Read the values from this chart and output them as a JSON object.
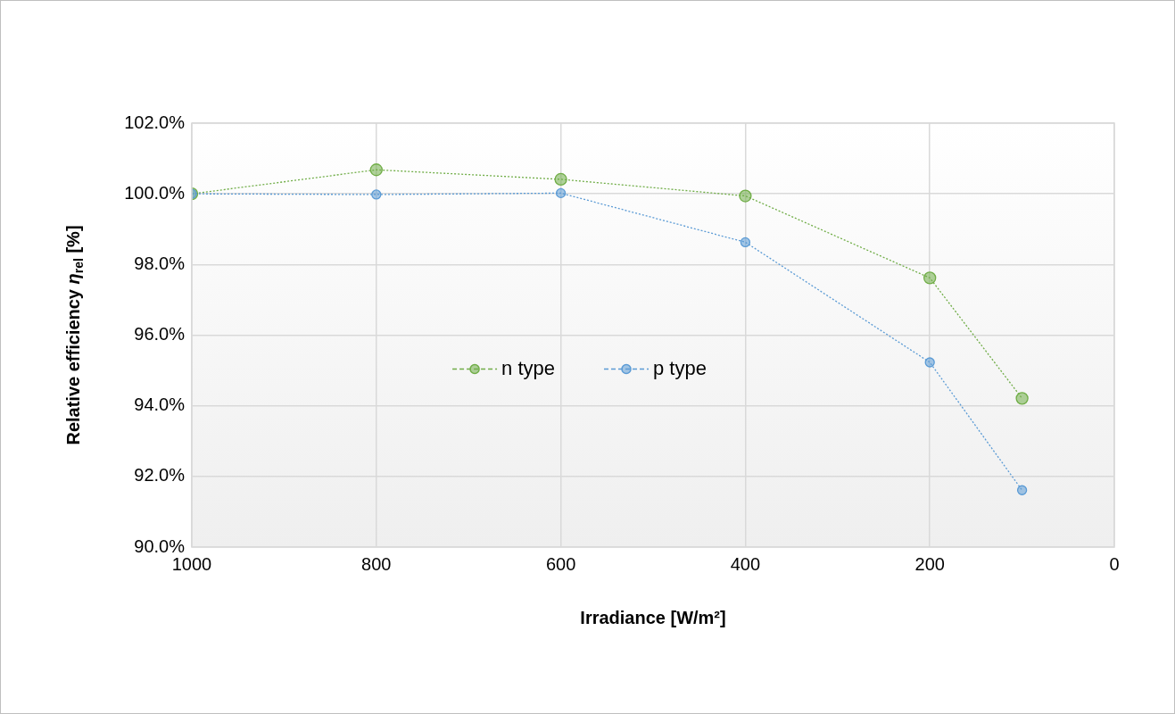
{
  "chart_data": {
    "type": "line",
    "xlabel": "Irradiance [W/m²]",
    "ylabel": "Relative efficiency η$_{rel}$ [%]",
    "series": [
      {
        "name": "n type",
        "color": "#70ad47",
        "x": [
          1000,
          800,
          600,
          400,
          200,
          100
        ],
        "values": [
          100.0,
          100.68,
          100.41,
          99.94,
          97.62,
          94.21
        ]
      },
      {
        "name": "p type",
        "color": "#5b9bd5",
        "x": [
          1000,
          800,
          600,
          400,
          200,
          100
        ],
        "values": [
          100.0,
          99.98,
          100.02,
          98.63,
          95.23,
          91.61
        ]
      }
    ],
    "xlim": [
      1000,
      0
    ],
    "xticks": [
      1000,
      800,
      600,
      400,
      200,
      0
    ],
    "ylim": [
      90,
      102
    ],
    "yticks": [
      {
        "value": 90,
        "label": "90.0%"
      },
      {
        "value": 92,
        "label": "92.0%"
      },
      {
        "value": 94,
        "label": "94.0%"
      },
      {
        "value": 96,
        "label": "96.0%"
      },
      {
        "value": 98,
        "label": "98.0%"
      },
      {
        "value": 100,
        "label": "100.0%"
      },
      {
        "value": 102,
        "label": "102.0%"
      }
    ],
    "grid": true,
    "legend": "center",
    "marker": "circle",
    "line_style": "dotted"
  }
}
